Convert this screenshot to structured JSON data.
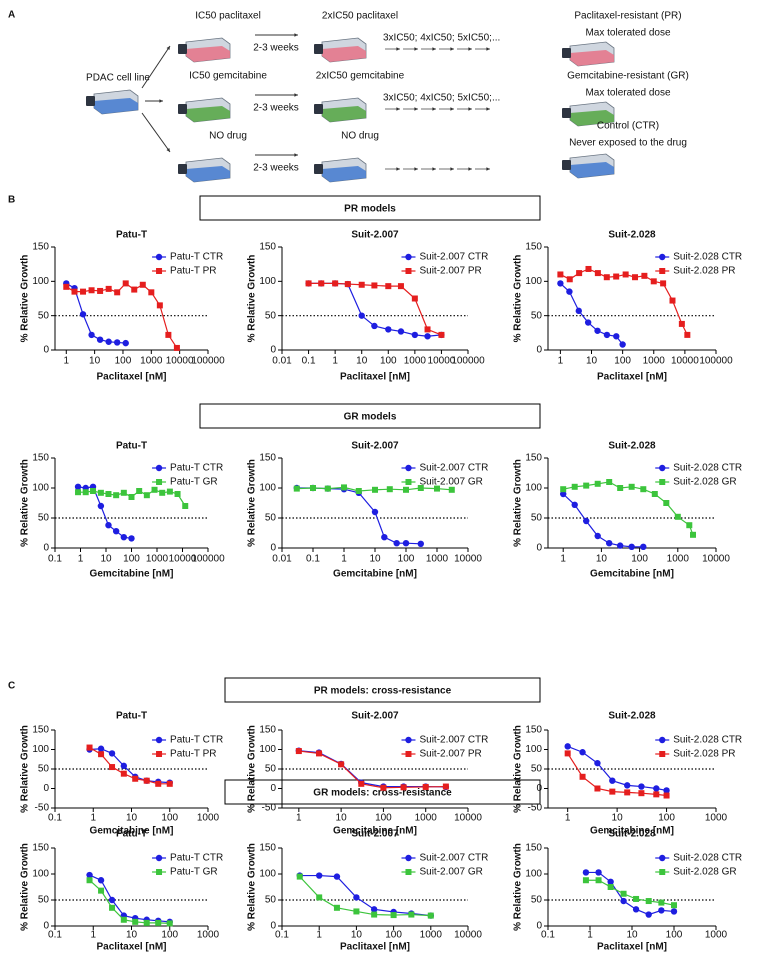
{
  "panels": [
    "A",
    "B",
    "C"
  ],
  "diagram": {
    "start": "PDAC cell line",
    "rows": [
      {
        "drug": "IC50 paclitaxel",
        "duration": "2-3 weeks",
        "next": "2xIC50 paclitaxel",
        "escalation": "3xIC50; 4xIC50; 5xIC50;...",
        "result": "Paclitaxel-resistant (PR)",
        "result_note": "Max tolerated dose",
        "color": "#e4788c"
      },
      {
        "drug": "IC50 gemcitabine",
        "duration": "2-3 weeks",
        "next": "2xIC50 gemcitabine",
        "escalation": "3xIC50; 4xIC50; 5xIC50;...",
        "result": "Gemcitabine-resistant (GR)",
        "result_note": "Max tolerated dose",
        "color": "#5aa84a"
      },
      {
        "drug": "NO drug",
        "duration": "2-3 weeks",
        "next": "NO drug",
        "result": "Control (CTR)",
        "result_note": "Never exposed to the drug",
        "color": "#4a7fd0"
      }
    ]
  },
  "section_titles": [
    "PR models",
    "GR models",
    "PR models: cross-resistance",
    "GR models: cross-resistance"
  ],
  "chart_data": [
    {
      "type": "line",
      "title": "Patu-T",
      "xlabel": "Paclitaxel [nM]",
      "ylabel": "% Relative Growth",
      "xscale": "log",
      "xlim": [
        0.4,
        100000
      ],
      "xticks": [
        1,
        10,
        100,
        1000,
        10000,
        100000
      ],
      "ylim": [
        0,
        150
      ],
      "yticks": [
        0,
        50,
        100,
        150
      ],
      "hline": 50,
      "legend": "upper right",
      "series": [
        {
          "name": "Patu-T CTR",
          "color": "#1e1ee0",
          "marker": "circle",
          "x": [
            1,
            1.95,
            3.9,
            7.8,
            15.6,
            31.3,
            62.5,
            125
          ],
          "values": [
            97,
            90,
            52,
            22,
            15,
            12,
            11,
            10
          ]
        },
        {
          "name": "Patu-T PR",
          "color": "#e51e1e",
          "marker": "square",
          "x": [
            1,
            1.95,
            3.9,
            7.8,
            15.6,
            31.3,
            62.5,
            125,
            250,
            500,
            1000,
            2000,
            4000,
            8000
          ],
          "values": [
            92,
            85,
            85,
            87,
            86,
            89,
            84,
            97,
            88,
            95,
            84,
            65,
            22,
            3
          ]
        }
      ]
    },
    {
      "type": "line",
      "title": "Suit-2.007",
      "xlabel": "Paclitaxel [nM]",
      "ylabel": "% Relative Growth",
      "xscale": "log",
      "xlim": [
        0.01,
        100000
      ],
      "xticks": [
        0.01,
        0.1,
        1,
        10,
        100,
        1000,
        10000,
        100000
      ],
      "ylim": [
        0,
        150
      ],
      "yticks": [
        0,
        50,
        100,
        150
      ],
      "hline": 50,
      "legend": "upper right",
      "series": [
        {
          "name": "Suit-2.007 CTR",
          "color": "#1e1ee0",
          "marker": "circle",
          "x": [
            0.1,
            0.3,
            1,
            3,
            10,
            30,
            100,
            300,
            1000,
            3000,
            10000
          ],
          "values": [
            97,
            97,
            97,
            96,
            50,
            35,
            30,
            27,
            22,
            20,
            22
          ]
        },
        {
          "name": "Suit-2.007 PR",
          "color": "#e51e1e",
          "marker": "square",
          "x": [
            0.1,
            0.3,
            1,
            3,
            10,
            30,
            100,
            300,
            1000,
            3000,
            10000
          ],
          "values": [
            97,
            97,
            97,
            96,
            95,
            94,
            93,
            93,
            75,
            30,
            22
          ]
        }
      ]
    },
    {
      "type": "line",
      "title": "Suit-2.028",
      "xlabel": "Paclitaxel [nM]",
      "ylabel": "% Relative Growth",
      "xscale": "log",
      "xlim": [
        0.4,
        100000
      ],
      "xticks": [
        1,
        10,
        100,
        1000,
        10000,
        100000
      ],
      "ylim": [
        0,
        150
      ],
      "yticks": [
        0,
        50,
        100,
        150
      ],
      "hline": 50,
      "legend": "upper right",
      "series": [
        {
          "name": "Suit-2.028 CTR",
          "color": "#1e1ee0",
          "marker": "circle",
          "x": [
            1,
            1.95,
            3.9,
            7.8,
            15.6,
            31.3,
            62.5,
            100
          ],
          "values": [
            97,
            85,
            57,
            40,
            28,
            22,
            20,
            8
          ]
        },
        {
          "name": "Suit-2.028 PR",
          "color": "#e51e1e",
          "marker": "square",
          "x": [
            1,
            2,
            4,
            8,
            16,
            31,
            62,
            125,
            250,
            500,
            1000,
            2000,
            4000,
            8000,
            12000
          ],
          "values": [
            110,
            103,
            112,
            118,
            112,
            106,
            107,
            110,
            106,
            108,
            100,
            97,
            72,
            38,
            22
          ]
        }
      ]
    },
    {
      "type": "line",
      "title": "Patu-T",
      "xlabel": "Gemcitabine [nM]",
      "ylabel": "% Relative Growth",
      "xscale": "log",
      "xlim": [
        0.1,
        100000
      ],
      "xticks": [
        0.1,
        1,
        10,
        100,
        1000,
        10000,
        100000
      ],
      "ylim": [
        0,
        150
      ],
      "yticks": [
        0,
        50,
        100,
        150
      ],
      "hline": 50,
      "legend": "upper right",
      "series": [
        {
          "name": "Patu-T CTR",
          "color": "#1e1ee0",
          "marker": "circle",
          "x": [
            0.8,
            1.6,
            3.1,
            6.3,
            12.5,
            25,
            50,
            100
          ],
          "values": [
            102,
            100,
            102,
            70,
            38,
            28,
            18,
            16
          ]
        },
        {
          "name": "Patu-T GR",
          "color": "#3cc43c",
          "marker": "square",
          "x": [
            0.8,
            1.6,
            3.1,
            6.3,
            12.5,
            25,
            50,
            100,
            200,
            400,
            800,
            1600,
            3200,
            6400,
            12800
          ],
          "values": [
            93,
            93,
            95,
            92,
            90,
            88,
            92,
            85,
            95,
            88,
            97,
            92,
            94,
            90,
            70
          ]
        }
      ]
    },
    {
      "type": "line",
      "title": "Suit-2.007",
      "xlabel": "Gemcitabine [nM]",
      "ylabel": "% Relative Growth",
      "xscale": "log",
      "xlim": [
        0.01,
        10000
      ],
      "xticks": [
        0.01,
        0.1,
        1,
        10,
        100,
        1000,
        10000
      ],
      "ylim": [
        0,
        150
      ],
      "yticks": [
        0,
        50,
        100,
        150
      ],
      "hline": 50,
      "legend": "upper right",
      "series": [
        {
          "name": "Suit-2.007 CTR",
          "color": "#1e1ee0",
          "marker": "circle",
          "x": [
            0.03,
            0.1,
            0.3,
            1,
            3,
            10,
            20,
            50,
            100,
            300
          ],
          "values": [
            100,
            100,
            99,
            98,
            92,
            60,
            18,
            8,
            8,
            7
          ]
        },
        {
          "name": "Suit-2.007 GR",
          "color": "#3cc43c",
          "marker": "square",
          "x": [
            0.03,
            0.1,
            0.3,
            1,
            3,
            10,
            30,
            100,
            300,
            1000,
            3000
          ],
          "values": [
            99,
            100,
            99,
            101,
            95,
            97,
            98,
            97,
            100,
            99,
            97
          ]
        }
      ]
    },
    {
      "type": "line",
      "title": "Suit-2.028",
      "xlabel": "Gemcitabine [nM]",
      "ylabel": "% Relative Growth",
      "xscale": "log",
      "xlim": [
        0.4,
        10000
      ],
      "xticks": [
        1,
        10,
        100,
        1000,
        10000
      ],
      "ylim": [
        0,
        150
      ],
      "yticks": [
        0,
        50,
        100,
        150
      ],
      "hline": 50,
      "legend": "upper right",
      "series": [
        {
          "name": "Suit-2.028 CTR",
          "color": "#1e1ee0",
          "marker": "circle",
          "x": [
            1,
            2,
            4,
            8,
            16,
            31,
            62,
            125
          ],
          "values": [
            90,
            72,
            45,
            20,
            8,
            4,
            2,
            2
          ]
        },
        {
          "name": "Suit-2.028 GR",
          "color": "#3cc43c",
          "marker": "square",
          "x": [
            1,
            2,
            4,
            8,
            16,
            31,
            62,
            125,
            250,
            500,
            1000,
            2000,
            2500
          ],
          "values": [
            98,
            102,
            104,
            107,
            110,
            100,
            102,
            98,
            90,
            75,
            52,
            38,
            22
          ]
        }
      ]
    },
    {
      "type": "line",
      "title": "Patu-T",
      "xlabel": "Gemcitabine [nM]",
      "ylabel": "% Relative Growth",
      "xscale": "log",
      "xlim": [
        0.1,
        1000
      ],
      "xticks": [
        0.1,
        1,
        10,
        100,
        1000
      ],
      "ylim": [
        -50,
        150
      ],
      "yticks": [
        -50,
        0,
        50,
        100,
        150
      ],
      "hline": 50,
      "legend": "upper right",
      "series": [
        {
          "name": "Patu-T CTR",
          "color": "#1e1ee0",
          "marker": "circle",
          "x": [
            0.8,
            1.6,
            3.1,
            6.3,
            12.5,
            25,
            50,
            100
          ],
          "values": [
            100,
            102,
            90,
            58,
            30,
            20,
            17,
            15
          ]
        },
        {
          "name": "Patu-T PR",
          "color": "#e51e1e",
          "marker": "square",
          "x": [
            0.8,
            1.6,
            3.1,
            6.3,
            12.5,
            25,
            50,
            100
          ],
          "values": [
            105,
            88,
            55,
            38,
            25,
            20,
            12,
            12
          ]
        }
      ]
    },
    {
      "type": "line",
      "title": "Suit-2.007",
      "xlabel": "Gemcitabine [nM]",
      "ylabel": "% Relative Growth",
      "xscale": "log",
      "xlim": [
        0.4,
        10000
      ],
      "xticks": [
        1,
        10,
        100,
        1000,
        10000
      ],
      "ylim": [
        -50,
        150
      ],
      "yticks": [
        -50,
        0,
        50,
        100,
        150
      ],
      "hline": 50,
      "legend": "upper right",
      "series": [
        {
          "name": "Suit-2.007 CTR",
          "color": "#1e1ee0",
          "marker": "circle",
          "x": [
            1,
            3,
            10,
            30,
            100,
            300,
            1000,
            3000
          ],
          "values": [
            97,
            92,
            63,
            15,
            5,
            5,
            5,
            4
          ]
        },
        {
          "name": "Suit-2.007 PR",
          "color": "#e51e1e",
          "marker": "square",
          "x": [
            1,
            3,
            10,
            30,
            100,
            300,
            1000,
            3000
          ],
          "values": [
            96,
            90,
            62,
            12,
            2,
            3,
            4,
            5
          ]
        }
      ]
    },
    {
      "type": "line",
      "title": "Suit-2.028",
      "xlabel": "Gemcitabine [nM]",
      "ylabel": "% Relative Growth",
      "xscale": "log",
      "xlim": [
        0.4,
        1000
      ],
      "xticks": [
        1,
        10,
        100,
        1000
      ],
      "ylim": [
        -50,
        150
      ],
      "yticks": [
        -50,
        0,
        50,
        100,
        150
      ],
      "hline": 50,
      "legend": "upper right",
      "series": [
        {
          "name": "Suit-2.028 CTR",
          "color": "#1e1ee0",
          "marker": "circle",
          "x": [
            1,
            2,
            4,
            8,
            16,
            31,
            62,
            100
          ],
          "values": [
            108,
            93,
            65,
            20,
            8,
            5,
            0,
            -5
          ]
        },
        {
          "name": "Suit-2.028 PR",
          "color": "#e51e1e",
          "marker": "square",
          "x": [
            1,
            2,
            4,
            8,
            16,
            31,
            62,
            100
          ],
          "values": [
            90,
            30,
            0,
            -8,
            -10,
            -12,
            -15,
            -18
          ]
        }
      ]
    },
    {
      "type": "line",
      "title": "Patu-T",
      "xlabel": "Paclitaxel [nM]",
      "ylabel": "% Relative Growth",
      "xscale": "log",
      "xlim": [
        0.1,
        1000
      ],
      "xticks": [
        0.1,
        1,
        10,
        100,
        1000
      ],
      "ylim": [
        0,
        150
      ],
      "yticks": [
        0,
        50,
        100,
        150
      ],
      "hline": 50,
      "legend": "upper right",
      "series": [
        {
          "name": "Patu-T CTR",
          "color": "#1e1ee0",
          "marker": "circle",
          "x": [
            0.8,
            1.6,
            3.1,
            6.3,
            12.5,
            25,
            50,
            100
          ],
          "values": [
            98,
            88,
            50,
            20,
            15,
            12,
            10,
            8
          ]
        },
        {
          "name": "Patu-T GR",
          "color": "#3cc43c",
          "marker": "square",
          "x": [
            0.8,
            1.6,
            3.1,
            6.3,
            12.5,
            25,
            50,
            100
          ],
          "values": [
            88,
            68,
            35,
            12,
            8,
            6,
            6,
            5
          ]
        }
      ]
    },
    {
      "type": "line",
      "title": "Suit-2.007",
      "xlabel": "Paclitaxel [nM]",
      "ylabel": "% Relative Growth",
      "xscale": "log",
      "xlim": [
        0.1,
        10000
      ],
      "xticks": [
        0.1,
        1,
        10,
        100,
        1000,
        10000
      ],
      "ylim": [
        0,
        150
      ],
      "yticks": [
        0,
        50,
        100,
        150
      ],
      "hline": 50,
      "legend": "upper right",
      "series": [
        {
          "name": "Suit-2.007 CTR",
          "color": "#1e1ee0",
          "marker": "circle",
          "x": [
            0.3,
            1,
            3,
            10,
            30,
            100,
            300,
            1000
          ],
          "values": [
            97,
            97,
            95,
            55,
            32,
            27,
            24,
            20
          ]
        },
        {
          "name": "Suit-2.007 GR",
          "color": "#3cc43c",
          "marker": "square",
          "x": [
            0.3,
            1,
            3,
            10,
            30,
            100,
            300,
            1000
          ],
          "values": [
            95,
            55,
            35,
            28,
            22,
            21,
            22,
            20
          ]
        }
      ]
    },
    {
      "type": "line",
      "title": "Suit-2.028",
      "xlabel": "Paclitaxel [nM]",
      "ylabel": "% Relative Growth",
      "xscale": "log",
      "xlim": [
        0.1,
        1000
      ],
      "xticks": [
        0.1,
        1,
        10,
        100,
        1000
      ],
      "ylim": [
        0,
        150
      ],
      "yticks": [
        0,
        50,
        100,
        150
      ],
      "hline": 50,
      "legend": "upper right",
      "series": [
        {
          "name": "Suit-2.028 CTR",
          "color": "#1e1ee0",
          "marker": "circle",
          "x": [
            0.8,
            1.6,
            3.1,
            6.3,
            12.5,
            25,
            50,
            100
          ],
          "values": [
            103,
            103,
            85,
            48,
            32,
            22,
            30,
            28
          ]
        },
        {
          "name": "Suit-2.028 GR",
          "color": "#3cc43c",
          "marker": "square",
          "x": [
            0.8,
            1.6,
            3.1,
            6.3,
            12.5,
            25,
            50,
            100
          ],
          "values": [
            88,
            88,
            75,
            62,
            52,
            48,
            45,
            40
          ]
        }
      ]
    }
  ]
}
